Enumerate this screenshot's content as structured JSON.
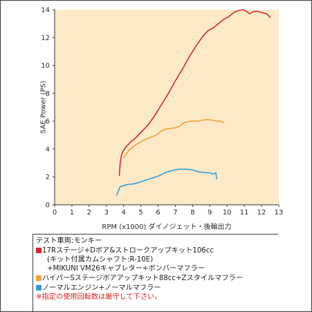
{
  "chart_data": {
    "type": "line",
    "title": "",
    "xlabel": "RPM (x1000) ダイノジェット・後輪出力",
    "ylabel": "SAE Power (PS)",
    "xlim": [
      0,
      13
    ],
    "ylim": [
      0,
      14
    ],
    "x_ticks": [
      "0",
      "1",
      "2",
      "3",
      "4",
      "5",
      "6",
      "7",
      "8",
      "9",
      "10",
      "11",
      "12",
      "13"
    ],
    "y_ticks": [
      "0",
      "2",
      "4",
      "6",
      "8",
      "10",
      "12",
      "14"
    ],
    "grid": false,
    "series": [
      {
        "name": "17Rステージ+Dボア&ストロークアップキット106cc",
        "color": "#d8262e",
        "x": [
          3.75,
          3.8,
          3.9,
          4.1,
          4.4,
          4.7,
          5.0,
          5.4,
          5.8,
          6.2,
          6.6,
          7.0,
          7.4,
          7.8,
          8.2,
          8.6,
          8.9,
          9.2,
          9.5,
          9.8,
          10.1,
          10.4,
          10.7,
          10.9,
          11.1,
          11.3,
          11.5,
          11.7,
          12.0,
          12.3,
          12.5
        ],
        "y": [
          2.1,
          3.0,
          3.7,
          4.1,
          4.5,
          4.8,
          5.2,
          5.7,
          6.4,
          7.2,
          8.0,
          8.9,
          9.7,
          10.6,
          11.4,
          12.1,
          12.5,
          12.7,
          13.0,
          13.3,
          13.5,
          13.8,
          13.95,
          14.0,
          13.9,
          13.7,
          13.85,
          13.9,
          13.8,
          13.7,
          13.45
        ]
      },
      {
        "name": "ハイパーSステージボアアップキット88cc+Zスタイルマフラー",
        "color": "#f0a23a",
        "x": [
          4.0,
          4.3,
          4.7,
          5.1,
          5.5,
          5.9,
          6.2,
          6.5,
          6.9,
          7.2,
          7.5,
          7.9,
          8.3,
          8.7,
          9.0,
          9.2,
          9.4,
          9.6,
          9.8
        ],
        "y": [
          3.4,
          3.9,
          4.3,
          4.6,
          4.8,
          5.0,
          5.3,
          5.45,
          5.5,
          5.6,
          5.9,
          6.0,
          6.0,
          6.1,
          6.1,
          6.05,
          6.0,
          6.0,
          5.9
        ]
      },
      {
        "name": "ノーマルエンジン+ノーマルマフラー",
        "color": "#2fa0dc",
        "x": [
          3.6,
          3.8,
          4.2,
          4.6,
          5.0,
          5.5,
          6.0,
          6.4,
          6.8,
          7.2,
          7.6,
          8.0,
          8.4,
          8.8,
          9.0,
          9.2,
          9.35,
          9.4
        ],
        "y": [
          0.7,
          1.3,
          1.45,
          1.5,
          1.65,
          1.85,
          2.05,
          2.3,
          2.45,
          2.55,
          2.55,
          2.5,
          2.35,
          2.3,
          2.3,
          2.2,
          2.3,
          1.85
        ]
      }
    ]
  },
  "legend": {
    "test_vehicle": "テスト車両:モンキー",
    "red_line1": "17Rステージ+Dボア&ストロークアップキット106cc",
    "red_line2": "(キット付属カムシャフト:R-10E)",
    "red_line3": "+MIKUNI VM26キャブレター+ボンバーマフラー",
    "orange_line": "ハイパーSステージボアアップキット88cc+Zスタイルマフラー",
    "blue_line": "ノーマルエンジン+ノーマルマフラー",
    "caution": "※指定の使用回転数は厳守して下さい。"
  }
}
